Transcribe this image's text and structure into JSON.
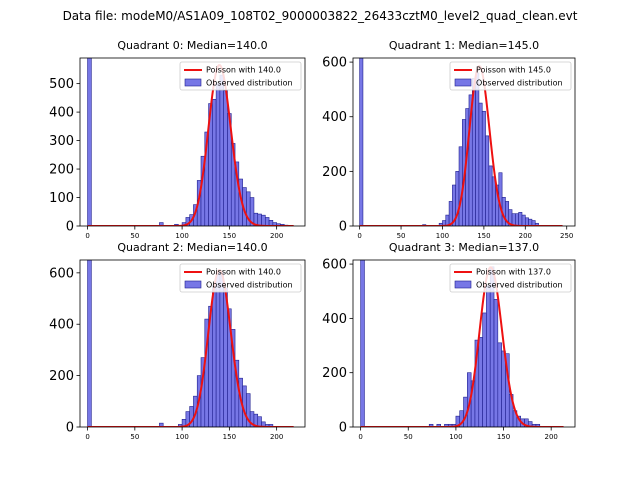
{
  "title": "Data file: modeM0/AS1A09_108T02_9000003822_26433cztM0_level2_quad_clean.evt",
  "colors": {
    "hist_fill": "#7777e6",
    "hist_edge": "#1f1f8f",
    "poisson": "#ee1111",
    "axis": "#000000"
  },
  "chart_data": [
    {
      "type": "bar",
      "title": "Quadrant 0: Median=140.0",
      "xlim": [
        -8,
        230
      ],
      "ylim": [
        0,
        590
      ],
      "xticks": [
        0,
        50,
        100,
        150,
        200
      ],
      "yticks": [
        0,
        100,
        200,
        300,
        400,
        500
      ],
      "legend": {
        "position": "top-right",
        "line_label": "Poisson with 140.0",
        "hist_label": "Observed distribution"
      },
      "bin_width": 4,
      "bins": [
        {
          "x": 0,
          "count": 590
        },
        {
          "x": 76,
          "count": 12
        },
        {
          "x": 92,
          "count": 6
        },
        {
          "x": 100,
          "count": 12
        },
        {
          "x": 104,
          "count": 30
        },
        {
          "x": 108,
          "count": 40
        },
        {
          "x": 112,
          "count": 75
        },
        {
          "x": 116,
          "count": 160
        },
        {
          "x": 120,
          "count": 245
        },
        {
          "x": 124,
          "count": 330
        },
        {
          "x": 128,
          "count": 430
        },
        {
          "x": 132,
          "count": 445
        },
        {
          "x": 136,
          "count": 500
        },
        {
          "x": 140,
          "count": 530
        },
        {
          "x": 144,
          "count": 475
        },
        {
          "x": 148,
          "count": 395
        },
        {
          "x": 152,
          "count": 290
        },
        {
          "x": 156,
          "count": 225
        },
        {
          "x": 160,
          "count": 165
        },
        {
          "x": 164,
          "count": 135
        },
        {
          "x": 168,
          "count": 120
        },
        {
          "x": 172,
          "count": 100
        },
        {
          "x": 176,
          "count": 45
        },
        {
          "x": 180,
          "count": 42
        },
        {
          "x": 184,
          "count": 38
        },
        {
          "x": 188,
          "count": 30
        },
        {
          "x": 192,
          "count": 20
        },
        {
          "x": 196,
          "count": 12
        },
        {
          "x": 200,
          "count": 8
        },
        {
          "x": 204,
          "count": 6
        },
        {
          "x": 208,
          "count": 3
        }
      ],
      "poisson": {
        "mean": 140.0,
        "peak": 565,
        "x_range": [
          0,
          218
        ]
      }
    },
    {
      "type": "bar",
      "title": "Quadrant 1: Median=145.0",
      "xlim": [
        -8,
        260
      ],
      "ylim": [
        0,
        615
      ],
      "xticks": [
        0,
        50,
        100,
        150,
        200,
        250
      ],
      "yticks": [
        0,
        200,
        400,
        600
      ],
      "legend": {
        "position": "top-right",
        "line_label": "Poisson with 145.0",
        "hist_label": "Observed distribution"
      },
      "bin_width": 4,
      "bins": [
        {
          "x": 0,
          "count": 615
        },
        {
          "x": 76,
          "count": 5
        },
        {
          "x": 96,
          "count": 10
        },
        {
          "x": 100,
          "count": 20
        },
        {
          "x": 104,
          "count": 40
        },
        {
          "x": 108,
          "count": 90
        },
        {
          "x": 112,
          "count": 150
        },
        {
          "x": 116,
          "count": 200
        },
        {
          "x": 120,
          "count": 290
        },
        {
          "x": 124,
          "count": 390
        },
        {
          "x": 128,
          "count": 430
        },
        {
          "x": 132,
          "count": 480
        },
        {
          "x": 136,
          "count": 540
        },
        {
          "x": 140,
          "count": 560
        },
        {
          "x": 144,
          "count": 450
        },
        {
          "x": 148,
          "count": 420
        },
        {
          "x": 152,
          "count": 330
        },
        {
          "x": 156,
          "count": 220
        },
        {
          "x": 160,
          "count": 180
        },
        {
          "x": 164,
          "count": 150
        },
        {
          "x": 168,
          "count": 195
        },
        {
          "x": 172,
          "count": 105
        },
        {
          "x": 176,
          "count": 90
        },
        {
          "x": 180,
          "count": 60
        },
        {
          "x": 184,
          "count": 45
        },
        {
          "x": 188,
          "count": 45
        },
        {
          "x": 192,
          "count": 50
        },
        {
          "x": 196,
          "count": 40
        },
        {
          "x": 200,
          "count": 30
        },
        {
          "x": 204,
          "count": 25
        },
        {
          "x": 208,
          "count": 20
        },
        {
          "x": 212,
          "count": 10
        }
      ],
      "poisson": {
        "mean": 145.0,
        "peak": 585,
        "x_range": [
          0,
          245
        ]
      }
    },
    {
      "type": "bar",
      "title": "Quadrant 2: Median=140.0",
      "xlim": [
        -8,
        230
      ],
      "ylim": [
        0,
        650
      ],
      "xticks": [
        0,
        50,
        100,
        150,
        200
      ],
      "yticks": [
        0,
        200,
        400,
        600
      ],
      "legend": {
        "position": "top-right",
        "line_label": "Poisson with 140.0",
        "hist_label": "Observed distribution"
      },
      "bin_width": 4,
      "bins": [
        {
          "x": 0,
          "count": 650
        },
        {
          "x": 76,
          "count": 15
        },
        {
          "x": 96,
          "count": 10
        },
        {
          "x": 100,
          "count": 30
        },
        {
          "x": 104,
          "count": 60
        },
        {
          "x": 108,
          "count": 80
        },
        {
          "x": 112,
          "count": 120
        },
        {
          "x": 116,
          "count": 200
        },
        {
          "x": 120,
          "count": 270
        },
        {
          "x": 124,
          "count": 420
        },
        {
          "x": 128,
          "count": 470
        },
        {
          "x": 132,
          "count": 550
        },
        {
          "x": 136,
          "count": 600
        },
        {
          "x": 140,
          "count": 600
        },
        {
          "x": 144,
          "count": 540
        },
        {
          "x": 148,
          "count": 460
        },
        {
          "x": 152,
          "count": 380
        },
        {
          "x": 156,
          "count": 260
        },
        {
          "x": 160,
          "count": 190
        },
        {
          "x": 164,
          "count": 160
        },
        {
          "x": 168,
          "count": 130
        },
        {
          "x": 172,
          "count": 60
        },
        {
          "x": 176,
          "count": 50
        },
        {
          "x": 180,
          "count": 40
        },
        {
          "x": 184,
          "count": 20
        },
        {
          "x": 188,
          "count": 10
        },
        {
          "x": 192,
          "count": 10
        }
      ],
      "poisson": {
        "mean": 140.0,
        "peak": 610,
        "x_range": [
          0,
          218
        ]
      }
    },
    {
      "type": "bar",
      "title": "Quadrant 3: Median=137.0",
      "xlim": [
        -8,
        225
      ],
      "ylim": [
        0,
        615
      ],
      "xticks": [
        0,
        50,
        100,
        150,
        200
      ],
      "yticks": [
        0,
        200,
        400,
        600
      ],
      "legend": {
        "position": "top-right",
        "line_label": "Poisson with 137.0",
        "hist_label": "Observed distribution"
      },
      "bin_width": 4,
      "bins": [
        {
          "x": 0,
          "count": 615
        },
        {
          "x": 72,
          "count": 10
        },
        {
          "x": 80,
          "count": 10
        },
        {
          "x": 88,
          "count": 10
        },
        {
          "x": 92,
          "count": 10
        },
        {
          "x": 96,
          "count": 10
        },
        {
          "x": 100,
          "count": 40
        },
        {
          "x": 104,
          "count": 60
        },
        {
          "x": 108,
          "count": 110
        },
        {
          "x": 112,
          "count": 200
        },
        {
          "x": 116,
          "count": 170
        },
        {
          "x": 120,
          "count": 320
        },
        {
          "x": 124,
          "count": 330
        },
        {
          "x": 128,
          "count": 420
        },
        {
          "x": 132,
          "count": 520
        },
        {
          "x": 136,
          "count": 590
        },
        {
          "x": 140,
          "count": 470
        },
        {
          "x": 144,
          "count": 310
        },
        {
          "x": 148,
          "count": 280
        },
        {
          "x": 152,
          "count": 270
        },
        {
          "x": 156,
          "count": 120
        },
        {
          "x": 160,
          "count": 60
        },
        {
          "x": 164,
          "count": 40
        },
        {
          "x": 168,
          "count": 30
        },
        {
          "x": 172,
          "count": 30
        },
        {
          "x": 176,
          "count": 20
        },
        {
          "x": 180,
          "count": 10
        },
        {
          "x": 184,
          "count": 10
        }
      ],
      "poisson": {
        "mean": 137.0,
        "peak": 588,
        "x_range": [
          0,
          213
        ]
      }
    }
  ]
}
